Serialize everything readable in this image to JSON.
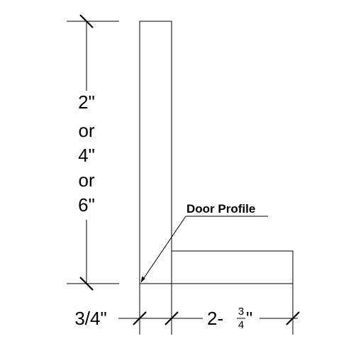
{
  "diagram": {
    "height_dimension": {
      "lines": [
        "2\"",
        "or",
        "4\"",
        "or",
        "6\""
      ]
    },
    "thickness_dimension": {
      "label": "3/4\""
    },
    "width_dimension": {
      "whole": "2-",
      "numerator": "3",
      "denominator": "4",
      "unit": "\""
    },
    "callout": {
      "label": "Door Profile"
    }
  }
}
